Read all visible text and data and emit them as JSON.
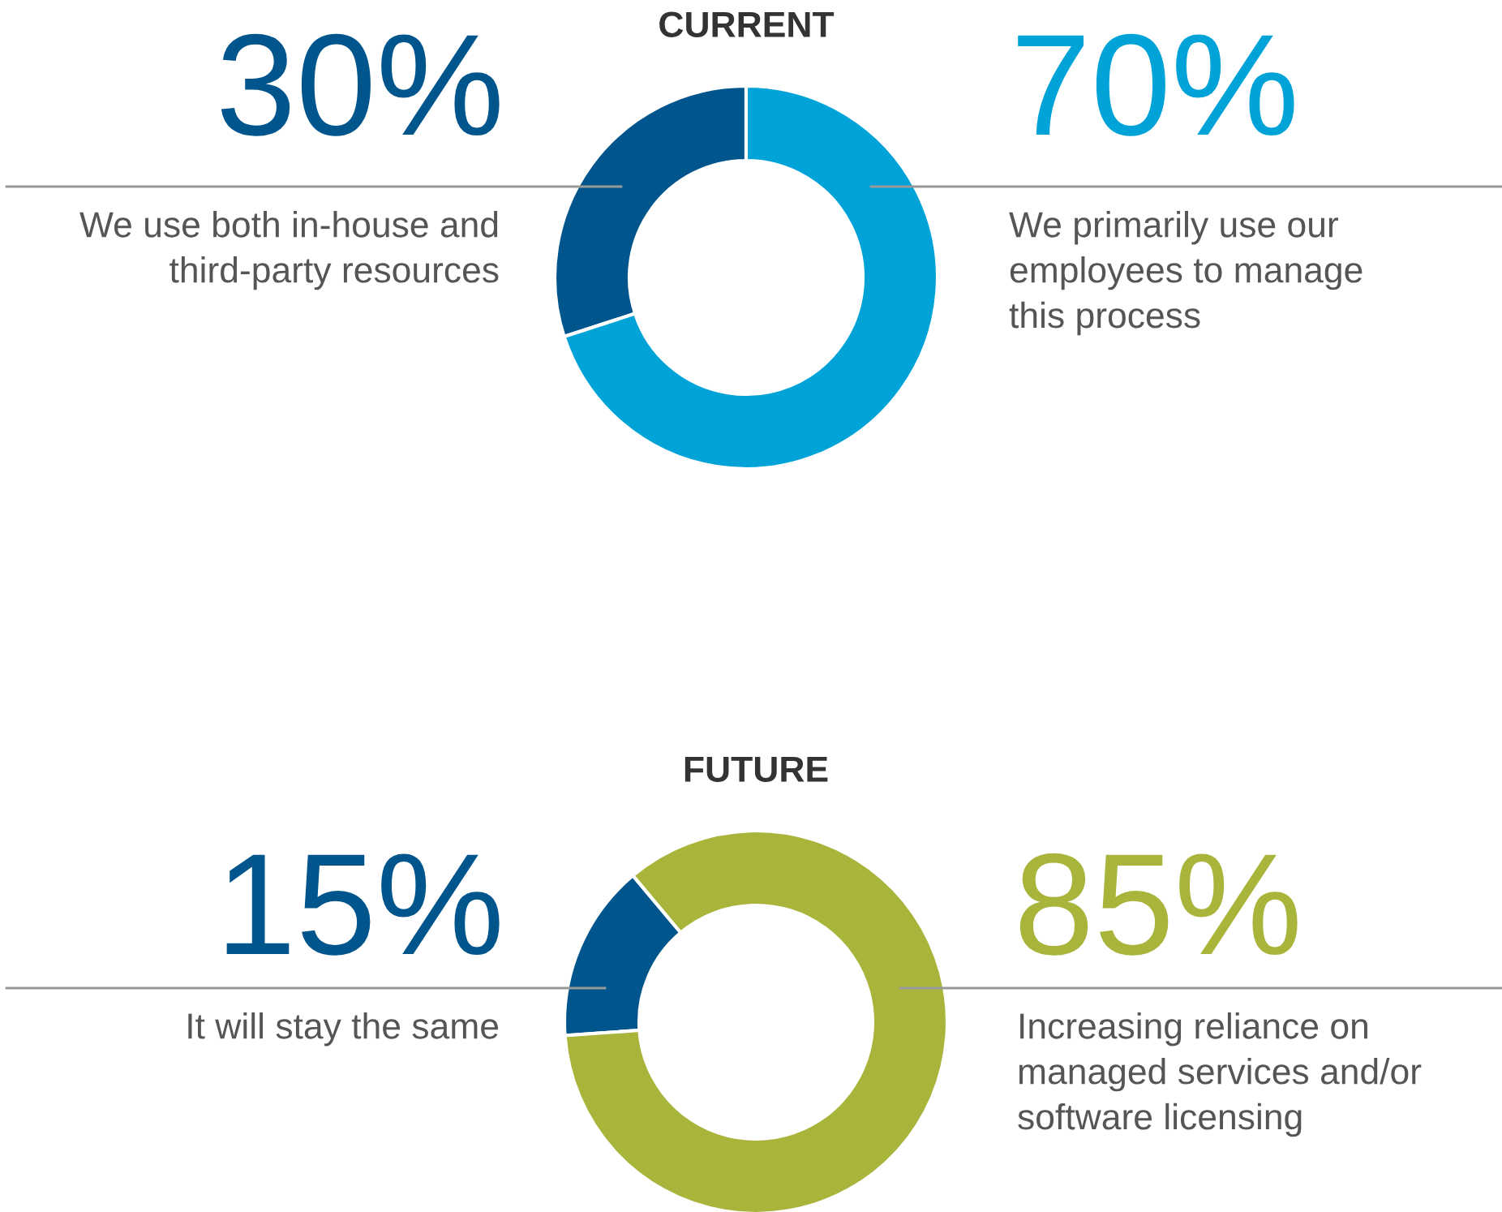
{
  "chart_data": [
    {
      "type": "donut",
      "title": "CURRENT",
      "categories": [
        "We use both in-house and\nthird-party resources",
        "We primarily use our\nemployees to manage\nthis process"
      ],
      "values": [
        30,
        70
      ],
      "value_labels": [
        "30%",
        "70%"
      ],
      "colors": [
        "#00568c",
        "#00a3d8"
      ],
      "legend": false
    },
    {
      "type": "donut",
      "title": "FUTURE",
      "categories": [
        "It will stay the same",
        "Increasing reliance on\nmanaged services and/or\nsoftware licensing"
      ],
      "values": [
        15,
        85
      ],
      "value_labels": [
        "15%",
        "85%"
      ],
      "colors": [
        "#00568c",
        "#a8b43a"
      ],
      "legend": false
    }
  ]
}
